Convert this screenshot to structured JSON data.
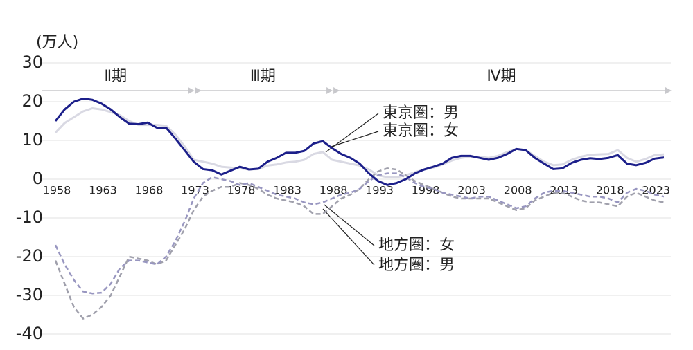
{
  "chart_data": {
    "type": "line",
    "y_label": "(万人)",
    "x": [
      1958,
      1959,
      1960,
      1961,
      1962,
      1963,
      1964,
      1965,
      1966,
      1967,
      1968,
      1969,
      1970,
      1971,
      1972,
      1973,
      1974,
      1975,
      1976,
      1977,
      1978,
      1979,
      1980,
      1981,
      1982,
      1983,
      1984,
      1985,
      1986,
      1987,
      1988,
      1989,
      1990,
      1991,
      1992,
      1993,
      1994,
      1995,
      1996,
      1997,
      1998,
      1999,
      2000,
      2001,
      2002,
      2003,
      2004,
      2005,
      2006,
      2007,
      2008,
      2009,
      2010,
      2011,
      2012,
      2013,
      2014,
      2015,
      2016,
      2017,
      2018,
      2019,
      2020,
      2021,
      2022,
      2023,
      2024
    ],
    "xlim": [
      1958,
      2024
    ],
    "xticks": [
      1958,
      1963,
      1968,
      1973,
      1978,
      1983,
      1988,
      1993,
      1998,
      2003,
      2008,
      2013,
      2018,
      2023
    ],
    "ylim": [
      -40,
      30
    ],
    "yticks": [
      30,
      20,
      10,
      0,
      -10,
      -20,
      -30,
      -40
    ],
    "grid": true,
    "periods": [
      "Ⅱ期",
      "Ⅲ期",
      "Ⅳ期"
    ],
    "period_breaks": [
      1973,
      1988
    ],
    "series": [
      {
        "name": "東京圏：男",
        "color": "#1c1f8a",
        "style": "solid",
        "values": [
          15,
          18,
          20,
          20.8,
          20.5,
          19.5,
          18,
          16,
          14.3,
          14.2,
          14.6,
          13.3,
          13.3,
          10.5,
          7.5,
          4.5,
          2.6,
          2.3,
          1.2,
          2.2,
          3.2,
          2.5,
          2.7,
          4.5,
          5.5,
          6.8,
          6.8,
          7.3,
          9.2,
          9.8,
          8,
          6.5,
          5.5,
          4,
          1.5,
          -0.5,
          -1.5,
          -1,
          0,
          1.5,
          2.5,
          3.2,
          4,
          5.5,
          6,
          6,
          5.5,
          5,
          5.5,
          6.5,
          7.8,
          7.5,
          5.5,
          4,
          2.6,
          2.8,
          4.2,
          5,
          5.4,
          5.2,
          5.5,
          6.2,
          4,
          3.6,
          4.2,
          5.3,
          5.6
        ]
      },
      {
        "name": "東京圏：女",
        "color": "#d9d9e3",
        "style": "solid",
        "values": [
          12,
          14.5,
          16,
          17.5,
          18.3,
          18,
          17.3,
          16.5,
          15,
          14,
          14,
          14,
          13.8,
          11.5,
          8.5,
          5,
          4.5,
          4,
          3.2,
          3,
          2.8,
          2.5,
          2.6,
          3.5,
          3.8,
          4.3,
          4.5,
          5,
          6.5,
          7,
          5,
          4.5,
          4,
          3.5,
          2.5,
          1,
          0.5,
          0.5,
          1,
          1.8,
          2.5,
          3,
          3.8,
          4.8,
          5.5,
          5.8,
          5.8,
          5.5,
          6,
          7,
          7.8,
          7.5,
          6,
          4.5,
          3.6,
          3.8,
          5,
          5.8,
          6.3,
          6.4,
          6.5,
          7.5,
          5.5,
          4.5,
          5.2,
          6.2,
          6.4
        ]
      },
      {
        "name": "地方圏：女",
        "color": "#9896c0",
        "style": "dashed",
        "values": [
          -17,
          -22,
          -26,
          -29,
          -29.5,
          -29.3,
          -27,
          -23,
          -21,
          -21,
          -21.5,
          -22,
          -20,
          -16,
          -11,
          -5,
          -1,
          0.5,
          0,
          -0.5,
          -1.5,
          -1,
          -2,
          -3,
          -4,
          -4.5,
          -5,
          -6,
          -6.5,
          -6,
          -5,
          -4,
          -3.5,
          -2.5,
          -0.5,
          1,
          1.5,
          1.5,
          0.5,
          -1,
          -2,
          -2.5,
          -3.5,
          -4,
          -4.5,
          -5,
          -4.5,
          -4.5,
          -5.5,
          -6.5,
          -7.5,
          -7,
          -5,
          -3.5,
          -3,
          -3,
          -3.5,
          -4,
          -4.5,
          -4.5,
          -5,
          -6,
          -3.5,
          -2.5,
          -3,
          -4,
          -4.5
        ]
      },
      {
        "name": "地方圏：男",
        "color": "#a0a0ac",
        "style": "dashed",
        "values": [
          -21,
          -27,
          -33,
          -36,
          -35,
          -33,
          -30,
          -25,
          -20,
          -20.5,
          -21,
          -22,
          -21,
          -17,
          -13,
          -8,
          -4.5,
          -3,
          -2,
          -2,
          -1,
          -1.5,
          -2.5,
          -4,
          -5,
          -5.5,
          -6,
          -7,
          -9,
          -9,
          -7,
          -5,
          -4,
          -2.5,
          0,
          2,
          2.8,
          2.5,
          1,
          -0.5,
          -1.5,
          -2.5,
          -3.5,
          -4.5,
          -5,
          -5,
          -5,
          -5,
          -6,
          -7,
          -8,
          -7.5,
          -5.5,
          -4.5,
          -3.5,
          -3.5,
          -4.5,
          -5.5,
          -6,
          -6,
          -6.5,
          -7,
          -4.5,
          -3.5,
          -4.5,
          -5.5,
          -6
        ]
      }
    ]
  }
}
